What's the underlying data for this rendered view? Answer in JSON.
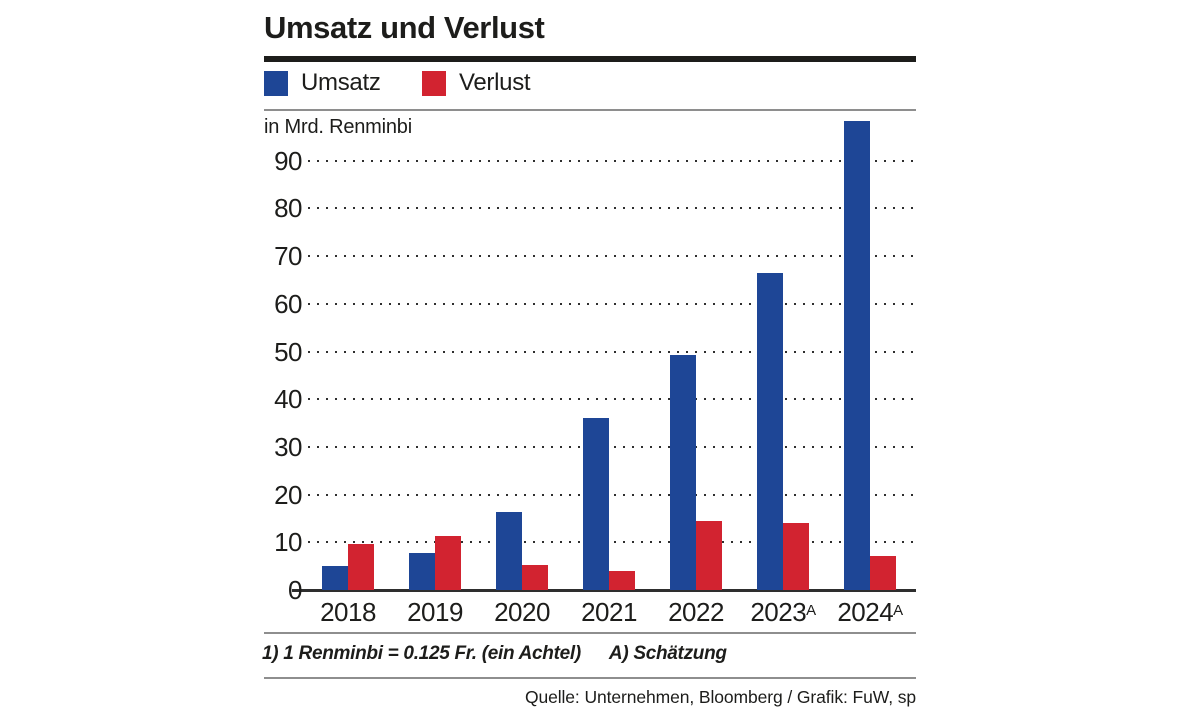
{
  "title": "Umsatz und Verlust",
  "legend": {
    "items": [
      {
        "label": "Umsatz",
        "color": "#1e4696"
      },
      {
        "label": "Verlust",
        "color": "#d22330"
      }
    ]
  },
  "unit_label": "in Mrd. Renminbi",
  "footnotes": {
    "note1": "1) 1 Renminbi = 0.125 Fr. (ein Achtel)",
    "note2": "A) Schätzung"
  },
  "source_line": "Quelle: Unternehmen, Bloomberg / Grafik: FuW, sp",
  "colors": {
    "umsatz_blue": "#1e4696",
    "verlust_red": "#d22330",
    "text": "#1d1d1b",
    "grid_dots": "#2e2e2e",
    "rule_gray": "#8e8e8e"
  },
  "chart_data": {
    "type": "bar",
    "title": "Umsatz und Verlust",
    "ylabel": "in Mrd. Renminbi",
    "xlabel": "",
    "categories": [
      "2018",
      "2019",
      "2020",
      "2021",
      "2022",
      "2023",
      "2024"
    ],
    "category_superscripts": [
      "",
      "",
      "",
      "",
      "",
      "A",
      "A"
    ],
    "series": [
      {
        "name": "Umsatz",
        "color": "#1e4696",
        "values": [
          5.0,
          7.8,
          16.3,
          36.1,
          49.3,
          66.5,
          98.3
        ]
      },
      {
        "name": "Verlust",
        "color": "#d22330",
        "values": [
          9.6,
          11.3,
          5.3,
          4.0,
          14.4,
          14.1,
          7.1
        ]
      }
    ],
    "yticks": [
      0,
      10,
      20,
      30,
      40,
      50,
      60,
      70,
      80,
      90
    ],
    "ylim": [
      0,
      100
    ],
    "grid": "horizontal-dotted",
    "legend_position": "top"
  }
}
